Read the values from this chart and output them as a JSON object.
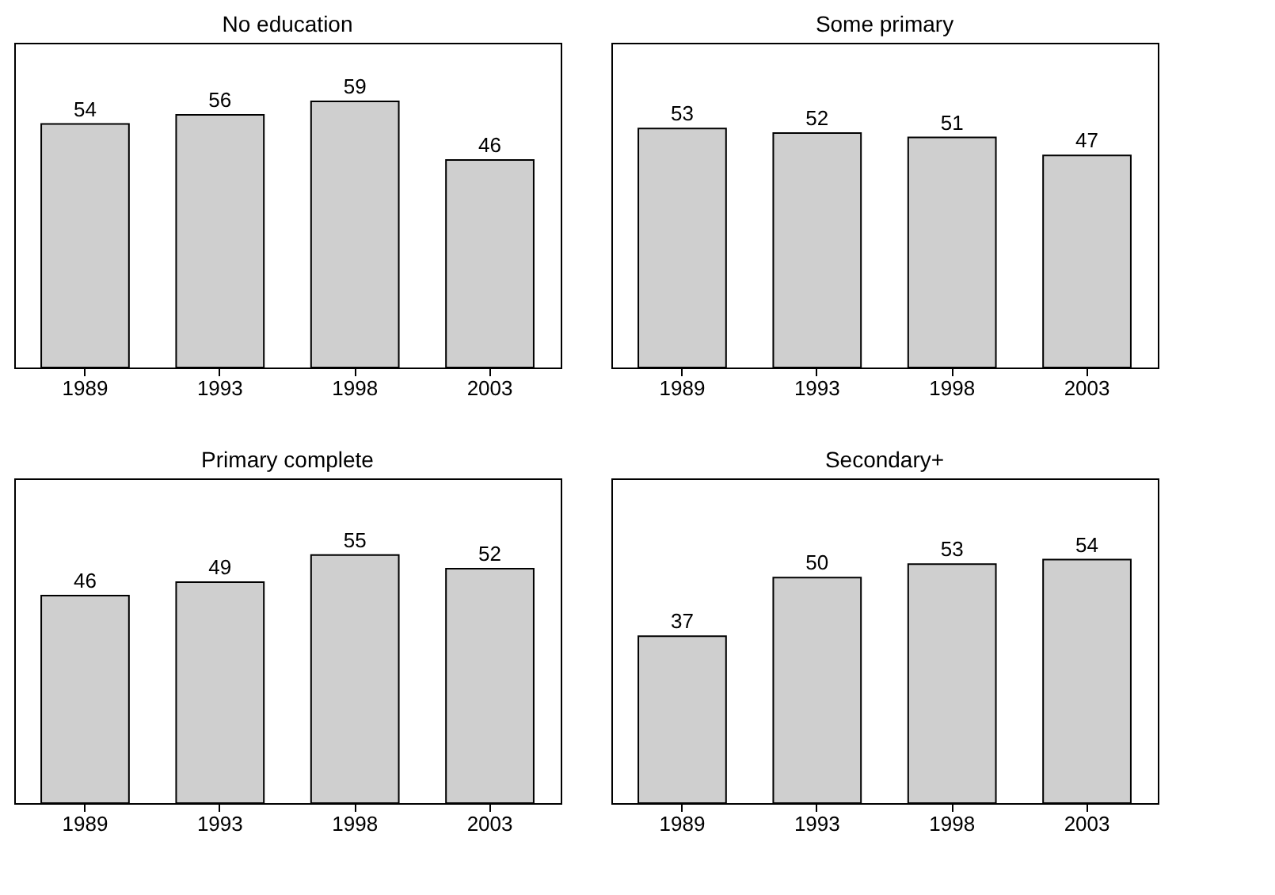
{
  "chart_data": [
    {
      "type": "bar",
      "title": "No education",
      "categories": [
        "1989",
        "1993",
        "1998",
        "2003"
      ],
      "values": [
        54,
        56,
        59,
        46
      ],
      "color": "#cfcfcf",
      "ylim": [
        0,
        72
      ],
      "data_labels": true,
      "grid": false,
      "tick_labels": "x"
    },
    {
      "type": "bar",
      "title": "Some primary",
      "categories": [
        "1989",
        "1993",
        "1998",
        "2003"
      ],
      "values": [
        53,
        52,
        51,
        47
      ],
      "color": "#cfcfcf",
      "ylim": [
        0,
        72
      ],
      "data_labels": true,
      "grid": false,
      "tick_labels": "x"
    },
    {
      "type": "bar",
      "title": "Primary complete",
      "categories": [
        "1989",
        "1993",
        "1998",
        "2003"
      ],
      "values": [
        46,
        49,
        55,
        52
      ],
      "color": "#cfcfcf",
      "ylim": [
        0,
        72
      ],
      "data_labels": true,
      "grid": false,
      "tick_labels": "x"
    },
    {
      "type": "bar",
      "title": "Secondary+",
      "categories": [
        "1989",
        "1993",
        "1998",
        "2003"
      ],
      "values": [
        37,
        50,
        53,
        54
      ],
      "color": "#cfcfcf",
      "ylim": [
        0,
        72
      ],
      "data_labels": true,
      "grid": false,
      "tick_labels": "x"
    }
  ]
}
